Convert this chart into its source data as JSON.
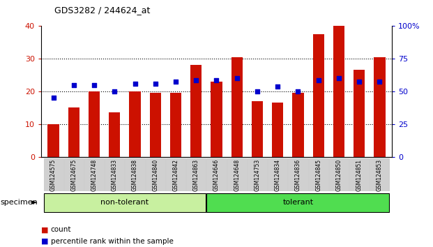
{
  "title": "GDS3282 / 244624_at",
  "categories": [
    "GSM124575",
    "GSM124675",
    "GSM124748",
    "GSM124833",
    "GSM124838",
    "GSM124840",
    "GSM124842",
    "GSM124863",
    "GSM124646",
    "GSM124648",
    "GSM124753",
    "GSM124834",
    "GSM124836",
    "GSM124845",
    "GSM124850",
    "GSM124851",
    "GSM124853"
  ],
  "counts": [
    10,
    15,
    20,
    13.5,
    20,
    19.5,
    19.5,
    28,
    23,
    30.5,
    17,
    16.5,
    19.5,
    37.5,
    40,
    26.5,
    30.5
  ],
  "percentile_pct": [
    45,
    55,
    55,
    50,
    56,
    56,
    57.5,
    58.75,
    58.75,
    60,
    50,
    53.75,
    50,
    58.75,
    60,
    57.5,
    57.5
  ],
  "groups": [
    {
      "label": "non-tolerant",
      "start": 0,
      "end": 7,
      "color": "#c8f0a0"
    },
    {
      "label": "tolerant",
      "start": 8,
      "end": 16,
      "color": "#50dd50"
    }
  ],
  "bar_color": "#cc1100",
  "dot_color": "#0000cc",
  "ylim_left": [
    0,
    40
  ],
  "ylim_right": [
    0,
    100
  ],
  "yticks_left": [
    0,
    10,
    20,
    30,
    40
  ],
  "yticks_right": [
    0,
    25,
    50,
    75,
    100
  ],
  "bar_width": 0.55,
  "specimen_label": "specimen",
  "legend_count": "count",
  "legend_pct": "percentile rank within the sample"
}
